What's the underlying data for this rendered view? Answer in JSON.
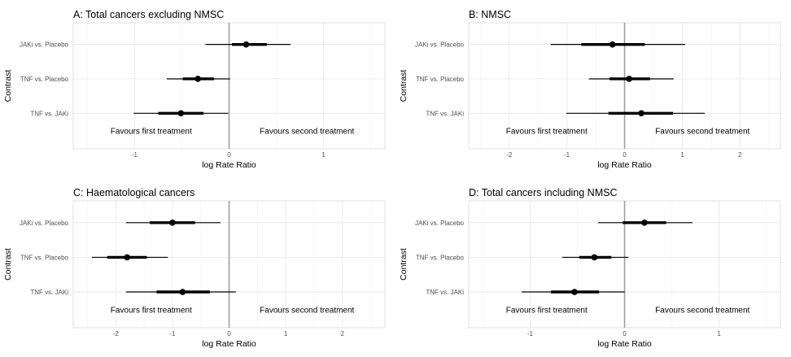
{
  "chart_data": [
    {
      "type": "forest",
      "title": "A: Total cancers excluding NMSC",
      "xlabel": "log Rate Ratio",
      "ylabel": "Contrast",
      "xlim": [
        -1.65,
        1.65
      ],
      "xticks": [
        -1,
        0,
        1
      ],
      "xtick_labels": [
        "-1",
        "0",
        "1"
      ],
      "reference_line": 0,
      "annotations": [
        "Favours first treatment",
        "Favours second treatment"
      ],
      "rows": [
        {
          "label": "JAKi vs. Placebo",
          "estimate": 0.18,
          "inner": [
            0.03,
            0.4
          ],
          "outer": [
            -0.25,
            0.65
          ]
        },
        {
          "label": "TNF vs. Placebo",
          "estimate": -0.33,
          "inner": [
            -0.49,
            -0.16
          ],
          "outer": [
            -0.66,
            0.01
          ]
        },
        {
          "label": "TNF vs. JAKi",
          "estimate": -0.51,
          "inner": [
            -0.75,
            -0.27
          ],
          "outer": [
            -1.01,
            -0.01
          ]
        }
      ]
    },
    {
      "type": "forest",
      "title": "B: NMSC",
      "xlabel": "log Rate Ratio",
      "ylabel": "Contrast",
      "xlim": [
        -2.7,
        2.7
      ],
      "xticks": [
        -2,
        -1,
        0,
        1,
        2
      ],
      "xtick_labels": [
        "-2",
        "-1",
        "0",
        "1",
        "2"
      ],
      "reference_line": 0,
      "annotations": [
        "Favours first treatment",
        "Favours second treatment"
      ],
      "rows": [
        {
          "label": "JAKi vs. Placebo",
          "estimate": -0.21,
          "inner": [
            -0.75,
            0.35
          ],
          "outer": [
            -1.28,
            1.05
          ]
        },
        {
          "label": "TNF vs. Placebo",
          "estimate": 0.08,
          "inner": [
            -0.26,
            0.44
          ],
          "outer": [
            -0.62,
            0.85
          ]
        },
        {
          "label": "TNF vs. JAKi",
          "estimate": 0.29,
          "inner": [
            -0.28,
            0.84
          ],
          "outer": [
            -1.01,
            1.39
          ]
        }
      ]
    },
    {
      "type": "forest",
      "title": "C: Haematological cancers",
      "xlabel": "log Rate Ratio",
      "ylabel": "Contrast",
      "xlim": [
        -2.75,
        2.75
      ],
      "xticks": [
        -2,
        -1,
        0,
        1,
        2
      ],
      "xtick_labels": [
        "-2",
        "-1",
        "0",
        "1",
        "2"
      ],
      "reference_line": 0,
      "annotations": [
        "Favours first treatment",
        "Favours second treatment"
      ],
      "rows": [
        {
          "label": "JAKi vs. Placebo",
          "estimate": -1.0,
          "inner": [
            -1.4,
            -0.6
          ],
          "outer": [
            -1.82,
            -0.15
          ]
        },
        {
          "label": "TNF vs. Placebo",
          "estimate": -1.8,
          "inner": [
            -2.15,
            -1.45
          ],
          "outer": [
            -2.42,
            -1.08
          ]
        },
        {
          "label": "TNF vs. JAKi",
          "estimate": -0.82,
          "inner": [
            -1.28,
            -0.34
          ],
          "outer": [
            -1.82,
            0.12
          ]
        }
      ]
    },
    {
      "type": "forest",
      "title": "D: Total cancers including NMSC",
      "xlabel": "log Rate Ratio",
      "ylabel": "Contrast",
      "xlim": [
        -1.65,
        1.65
      ],
      "xticks": [
        -1,
        0,
        1
      ],
      "xtick_labels": [
        "-1",
        "0",
        "1"
      ],
      "reference_line": 0,
      "annotations": [
        "Favours first treatment",
        "Favours second treatment"
      ],
      "rows": [
        {
          "label": "JAKi vs. Placebo",
          "estimate": 0.21,
          "inner": [
            -0.02,
            0.44
          ],
          "outer": [
            -0.28,
            0.72
          ]
        },
        {
          "label": "TNF vs. Placebo",
          "estimate": -0.32,
          "inner": [
            -0.48,
            -0.14
          ],
          "outer": [
            -0.66,
            0.04
          ]
        },
        {
          "label": "TNF vs. JAKi",
          "estimate": -0.53,
          "inner": [
            -0.78,
            -0.27
          ],
          "outer": [
            -1.09,
            0.0
          ]
        }
      ]
    }
  ]
}
